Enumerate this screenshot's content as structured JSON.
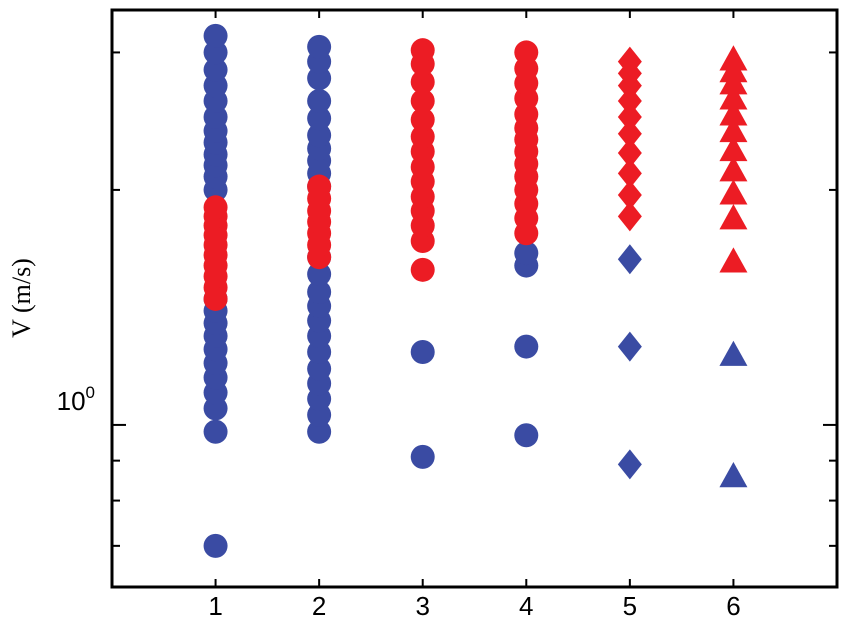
{
  "chart_data": {
    "type": "scatter",
    "xlabel": "",
    "ylabel": "V (m/s)",
    "y_scale": "log",
    "ylim": [
      0.62,
      3.4
    ],
    "xlim": [
      0,
      7
    ],
    "x_tick_labels": [
      "1",
      "2",
      "3",
      "4",
      "5",
      "6"
    ],
    "y_tick_label": {
      "base": "10",
      "exponent": "0"
    },
    "grid": false,
    "legend": "none",
    "colors": {
      "blue": "#3a4ba3",
      "red": "#ec1c24"
    },
    "series": [
      {
        "x": 1,
        "marker": "circle",
        "blue": [
          0.7,
          0.98,
          1.05,
          1.1,
          1.15,
          1.2,
          1.25,
          1.3,
          1.35,
          1.4,
          1.45,
          2.0,
          2.08,
          2.15,
          2.22,
          2.3,
          2.38,
          2.48,
          2.6,
          2.72,
          2.85,
          3.0,
          3.15
        ],
        "red": [
          1.45,
          1.5,
          1.55,
          1.6,
          1.65,
          1.7,
          1.75,
          1.8,
          1.85,
          1.9
        ]
      },
      {
        "x": 2,
        "marker": "circle",
        "blue": [
          0.98,
          1.03,
          1.08,
          1.13,
          1.18,
          1.24,
          1.3,
          1.36,
          1.42,
          1.48,
          1.56,
          1.64,
          2.02,
          2.1,
          2.18,
          2.26,
          2.35,
          2.47,
          2.6,
          2.78,
          2.92,
          3.05
        ],
        "red": [
          1.64,
          1.7,
          1.76,
          1.82,
          1.88,
          1.95,
          2.02
        ]
      },
      {
        "x": 3,
        "marker": "circle",
        "blue": [
          0.91,
          1.24
        ],
        "red": [
          1.58,
          1.72,
          1.8,
          1.88,
          1.96,
          2.05,
          2.14,
          2.24,
          2.34,
          2.46,
          2.6,
          2.75,
          2.9,
          3.02
        ]
      },
      {
        "x": 4,
        "marker": "circle",
        "blue": [
          0.97,
          1.26,
          1.6,
          1.66
        ],
        "red": [
          1.76,
          1.84,
          1.92,
          2.0,
          2.08,
          2.16,
          2.24,
          2.32,
          2.4,
          2.5,
          2.62,
          2.74,
          2.86,
          3.0
        ]
      },
      {
        "x": 5,
        "marker": "diamond",
        "blue": [
          0.89,
          1.26,
          1.63
        ],
        "red": [
          1.85,
          1.97,
          2.1,
          2.23,
          2.36,
          2.48,
          2.6,
          2.72,
          2.82,
          2.92
        ]
      },
      {
        "x": 6,
        "marker": "triangle",
        "blue": [
          0.86,
          1.23
        ],
        "red": [
          1.62,
          1.84,
          1.98,
          2.12,
          2.25,
          2.38,
          2.5,
          2.62,
          2.74,
          2.84,
          2.94
        ]
      }
    ]
  }
}
